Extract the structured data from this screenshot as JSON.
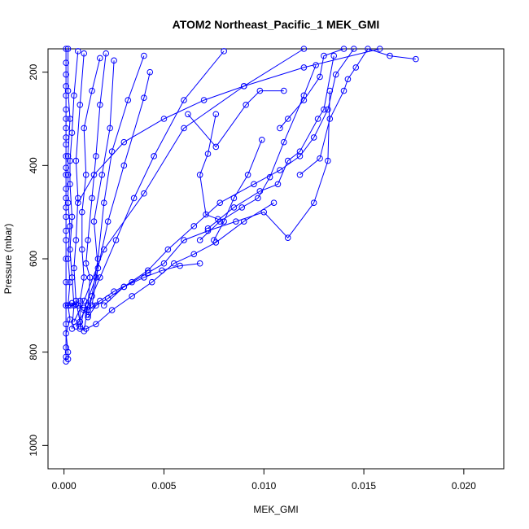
{
  "chart_data": {
    "type": "line",
    "title": "ATOM2 Northeast_Pacific_1 MEK_GMI",
    "xlabel": "MEK_GMI",
    "ylabel": "Pressure (mbar)",
    "xlim": [
      -0.0008,
      0.022
    ],
    "ylim": [
      1050,
      150
    ],
    "y_reversed": true,
    "grid": false,
    "x_ticks": [
      0.0,
      0.005,
      0.01,
      0.015,
      0.02
    ],
    "x_tick_labels": [
      "0.000",
      "0.005",
      "0.010",
      "0.015",
      "0.020"
    ],
    "y_ticks": [
      200,
      400,
      600,
      800,
      1000
    ],
    "y_tick_labels": [
      "200",
      "400",
      "600",
      "800",
      "1000"
    ],
    "series_color": "#0000ff",
    "series": [
      {
        "x": [
          0.0001,
          0.0001,
          0.0001,
          0.0001,
          0.0001,
          0.0001,
          0.0001,
          0.0001,
          0.0001,
          0.0001,
          0.0001,
          0.0001,
          0.0001,
          0.0001,
          0.0001,
          0.0001,
          0.0001,
          0.0001,
          0.0001,
          0.0001,
          0.0001,
          0.0001,
          0.0001,
          0.0001,
          0.0001,
          0.0001
        ],
        "y": [
          150,
          180,
          205,
          230,
          250,
          280,
          300,
          320,
          340,
          355,
          380,
          405,
          420,
          450,
          470,
          490,
          510,
          540,
          560,
          600,
          650,
          700,
          740,
          790,
          810,
          820
        ]
      },
      {
        "x": [
          0.0002,
          0.0002,
          0.0003,
          0.0002,
          0.0002,
          0.0002,
          0.0003,
          0.0002,
          0.0003,
          0.0002,
          0.0003,
          0.0001,
          0.0002,
          0.0002
        ],
        "y": [
          150,
          240,
          300,
          380,
          420,
          480,
          530,
          600,
          650,
          700,
          730,
          760,
          800,
          815
        ]
      },
      {
        "x": [
          0.0007,
          0.0005,
          0.0004,
          0.0003,
          0.0003,
          0.0004,
          0.0003,
          0.0004,
          0.0005,
          0.0004
        ],
        "y": [
          155,
          250,
          330,
          390,
          440,
          510,
          580,
          640,
          700,
          750
        ]
      },
      {
        "x": [
          0.001,
          0.0008,
          0.0006,
          0.0007,
          0.0006,
          0.0005,
          0.0006,
          0.0008
        ],
        "y": [
          160,
          270,
          390,
          470,
          560,
          620,
          690,
          735
        ]
      },
      {
        "x": [
          0.0018,
          0.0014,
          0.001,
          0.0011,
          0.0009,
          0.0009,
          0.001,
          0.0008,
          0.0008
        ],
        "y": [
          170,
          240,
          320,
          420,
          500,
          580,
          640,
          690,
          745
        ]
      },
      {
        "x": [
          0.0021,
          0.0018,
          0.0016,
          0.0014,
          0.0012,
          0.0011,
          0.0013,
          0.0012,
          0.001
        ],
        "y": [
          160,
          270,
          380,
          470,
          560,
          610,
          640,
          700,
          755
        ]
      },
      {
        "x": [
          0.0025,
          0.0023,
          0.0019,
          0.0015,
          0.0017,
          0.0014
        ],
        "y": [
          175,
          320,
          420,
          520,
          620,
          700
        ]
      },
      {
        "x": [
          0.004,
          0.0032,
          0.0024,
          0.002,
          0.0017,
          0.0014,
          0.0012
        ],
        "y": [
          165,
          260,
          370,
          480,
          600,
          680,
          720
        ]
      },
      {
        "x": [
          0.0043,
          0.004,
          0.003,
          0.0022,
          0.0016,
          0.001,
          0.0008
        ],
        "y": [
          200,
          255,
          400,
          520,
          640,
          710,
          750
        ]
      },
      {
        "x": [
          0.012,
          0.009,
          0.006,
          0.004,
          0.002,
          0.001,
          0.0005
        ],
        "y": [
          150,
          230,
          320,
          460,
          580,
          690,
          735
        ]
      },
      {
        "x": [
          0.008,
          0.006,
          0.0045,
          0.0035,
          0.0026,
          0.0018,
          0.0012,
          0.0006
        ],
        "y": [
          155,
          260,
          380,
          470,
          560,
          640,
          700,
          745
        ]
      },
      {
        "x": [
          0.0158,
          0.012,
          0.009,
          0.007,
          0.005,
          0.003,
          0.0015,
          0.0007
        ],
        "y": [
          150,
          190,
          230,
          260,
          300,
          350,
          420,
          480
        ]
      },
      {
        "x": [
          0.0062,
          0.0076,
          0.0091,
          0.0098,
          0.011
        ],
        "y": [
          290,
          360,
          270,
          240,
          240
        ]
      },
      {
        "x": [
          0.0076,
          0.0072,
          0.0068,
          0.0071,
          0.0077
        ],
        "y": [
          290,
          375,
          420,
          505,
          515
        ]
      },
      {
        "x": [
          0.0099,
          0.0092,
          0.0085,
          0.008,
          0.0075
        ],
        "y": [
          345,
          420,
          470,
          520,
          560
        ]
      },
      {
        "x": [
          0.0126,
          0.012,
          0.011,
          0.0103,
          0.0097,
          0.0089,
          0.0078,
          0.0068
        ],
        "y": [
          185,
          250,
          350,
          425,
          470,
          490,
          520,
          560
        ]
      },
      {
        "x": [
          0.0135,
          0.013,
          0.0127,
          0.0118,
          0.0112,
          0.0107,
          0.0098,
          0.0085,
          0.0072
        ],
        "y": [
          165,
          280,
          300,
          370,
          390,
          440,
          455,
          490,
          535
        ]
      },
      {
        "x": [
          0.0176,
          0.0163,
          0.0152,
          0.0146,
          0.0142,
          0.014,
          0.0133,
          0.0128,
          0.0118
        ],
        "y": [
          172,
          165,
          150,
          190,
          215,
          240,
          300,
          385,
          420
        ]
      },
      {
        "x": [
          0.014,
          0.013,
          0.0128,
          0.012,
          0.0112,
          0.0108
        ],
        "y": [
          150,
          165,
          210,
          260,
          300,
          320
        ]
      },
      {
        "x": [
          0.0145,
          0.0136,
          0.0132,
          0.0125,
          0.0118,
          0.0108,
          0.0095,
          0.0078,
          0.0065,
          0.0052,
          0.0042,
          0.003,
          0.002
        ],
        "y": [
          150,
          205,
          280,
          340,
          380,
          410,
          440,
          480,
          530,
          580,
          625,
          660,
          700
        ]
      },
      {
        "x": [
          0.0133,
          0.0132,
          0.0125,
          0.0112,
          0.01,
          0.0086,
          0.0072,
          0.006,
          0.005,
          0.0042,
          0.0034,
          0.0025,
          0.0018,
          0.0012
        ],
        "y": [
          240,
          390,
          480,
          555,
          500,
          520,
          540,
          560,
          610,
          630,
          650,
          670,
          690,
          710
        ]
      },
      {
        "x": [
          0.0068,
          0.0058,
          0.0049,
          0.004,
          0.003,
          0.0022,
          0.0016,
          0.0012
        ],
        "y": [
          610,
          615,
          625,
          640,
          660,
          685,
          700,
          725
        ]
      },
      {
        "x": [
          0.0105,
          0.009,
          0.0076,
          0.0065,
          0.0055,
          0.0044,
          0.0034,
          0.0024,
          0.0016,
          0.0011
        ],
        "y": [
          480,
          520,
          565,
          590,
          610,
          650,
          680,
          710,
          740,
          750
        ]
      },
      {
        "x": [
          0.0004,
          0.0007,
          0.001,
          0.0006,
          0.0003,
          0.0001
        ],
        "y": [
          695,
          700,
          705,
          698,
          700,
          700
        ]
      }
    ]
  }
}
